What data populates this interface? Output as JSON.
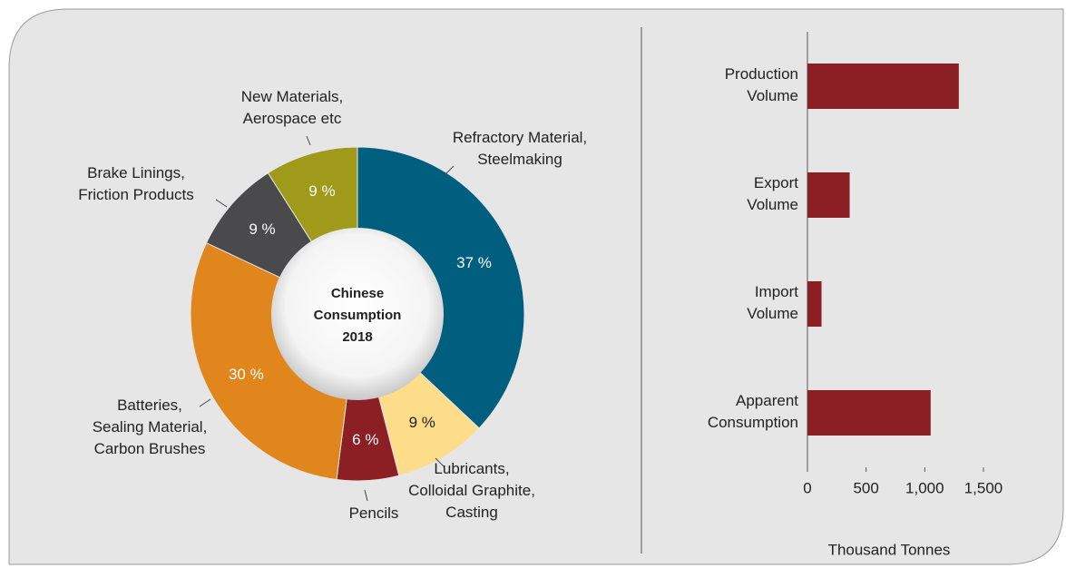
{
  "chart_data": [
    {
      "type": "donut",
      "center_label": "Chinese\nConsumption\n2018",
      "categories": [
        "Refractory Material,\nSteelmaking",
        "Lubricants,\nColloidal Graphite,\nCasting",
        "Pencils",
        "Batteries,\nSealing Material,\nCarbon Brushes",
        "Brake Linings,\nFriction Products",
        "New Materials,\nAerospace etc"
      ],
      "values": [
        37,
        9,
        6,
        30,
        9,
        9
      ],
      "value_labels": [
        "37 %",
        "9 %",
        "6 %",
        "30 %",
        "9 %",
        "9 %"
      ],
      "colors": [
        "#005e7f",
        "#fddc8a",
        "#8b1f24",
        "#e0861c",
        "#4a4a4c",
        "#a09a1a"
      ]
    },
    {
      "type": "hbar",
      "categories": [
        "Production\nVolume",
        "Export\nVolume",
        "Import\nVolume",
        "Apparent\nConsumption"
      ],
      "values": [
        1290,
        360,
        120,
        1050
      ],
      "color": "#8b1f24",
      "xlim": [
        0,
        1500
      ],
      "xticks": [
        0,
        500,
        {
          "value": 1000,
          "label": "1,000"
        },
        {
          "value": 1500,
          "label": "1,500"
        }
      ],
      "xlabel": "Thousand Tonnes"
    }
  ]
}
